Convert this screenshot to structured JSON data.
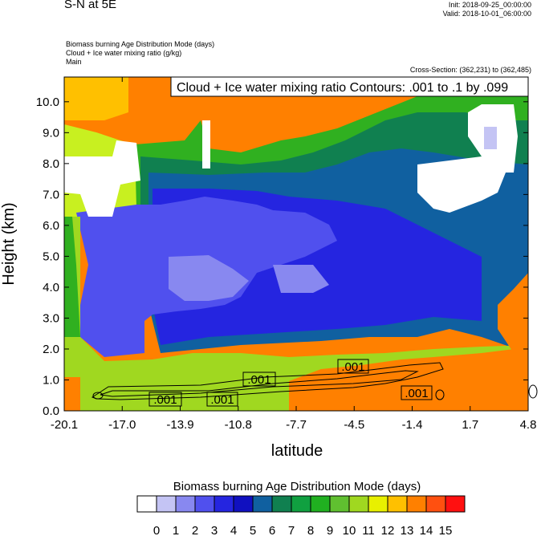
{
  "header": {
    "title": "S-N at 5E",
    "init": "Init: 2018-09-25_00:00:00",
    "valid": "Valid: 2018-10-01_06:00:00",
    "desc_line1": "Biomass burning Age Distribution Mode   (days)",
    "desc_line2": "Cloud + Ice water mixing ratio   (g/kg)",
    "desc_line3": "Main",
    "cross_section": "Cross-Section: (362,231) to (362,485)"
  },
  "chart_data": {
    "type": "heatmap",
    "title": "Cloud + Ice water mixing ratio Contours: .001 to .1 by .099",
    "xlabel": "latitude",
    "ylabel": "Height (km)",
    "x_ticks": [
      "-20.1",
      "-17.0",
      "-13.9",
      "-10.8",
      "-7.7",
      "-4.5",
      "-1.4",
      "1.7",
      "4.8"
    ],
    "y_ticks": [
      "0.0",
      "1.0",
      "2.0",
      "3.0",
      "4.0",
      "5.0",
      "6.0",
      "7.0",
      "8.0",
      "9.0",
      "10.0"
    ],
    "xlim": [
      -20.1,
      4.8
    ],
    "ylim": [
      0.0,
      10.8
    ],
    "contour_labels": [
      ".001",
      ".001",
      ".001",
      ".001",
      ".001"
    ],
    "colorbar": {
      "title": "Biomass burning Age Distribution Mode  (days)",
      "labels": [
        "0",
        "1",
        "2",
        "3",
        "4",
        "5",
        "6",
        "7",
        "8",
        "9",
        "10",
        "11",
        "12",
        "13",
        "14",
        "15"
      ],
      "colors": [
        "#ffffff",
        "#c4c4f4",
        "#8888f0",
        "#5050ee",
        "#2525e0",
        "#1010c0",
        "#1060a0",
        "#108050",
        "#10a040",
        "#20b020",
        "#60c030",
        "#a0d820",
        "#e8f000",
        "#ffc000",
        "#ff8000",
        "#ff5010",
        "#ff1010"
      ]
    }
  }
}
